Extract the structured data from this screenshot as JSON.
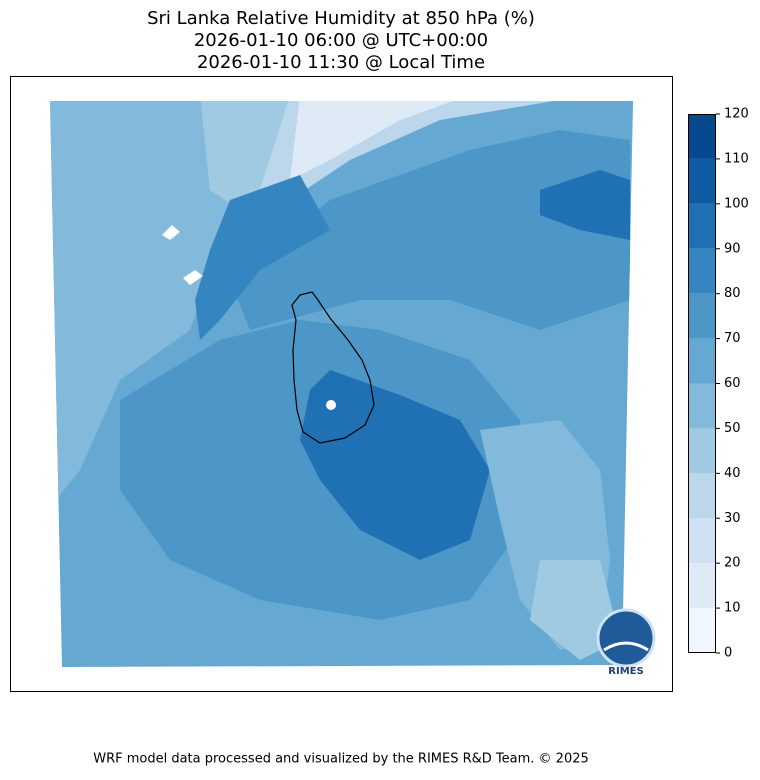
{
  "title": [
    "Sri Lanka Relative Humidity at 850 hPa (%)",
    "2026-01-10 06:00 @ UTC+00:00",
    "2026-01-10 11:30 @ Local Time"
  ],
  "colorbar": {
    "ticks": [
      0,
      10,
      20,
      30,
      40,
      50,
      60,
      70,
      80,
      90,
      100,
      110,
      120
    ],
    "colors": [
      "#f0f6fd",
      "#deebf7",
      "#cfe1f2",
      "#bcd7ec",
      "#a0cae2",
      "#83badb",
      "#65a9d3",
      "#4d96c8",
      "#3585c0",
      "#2070b4",
      "#0c5ba3",
      "#08488e"
    ]
  },
  "logo_text": "RIMES",
  "footer": "WRF model data processed and visualized by the RIMES R&D Team. © 2025"
}
